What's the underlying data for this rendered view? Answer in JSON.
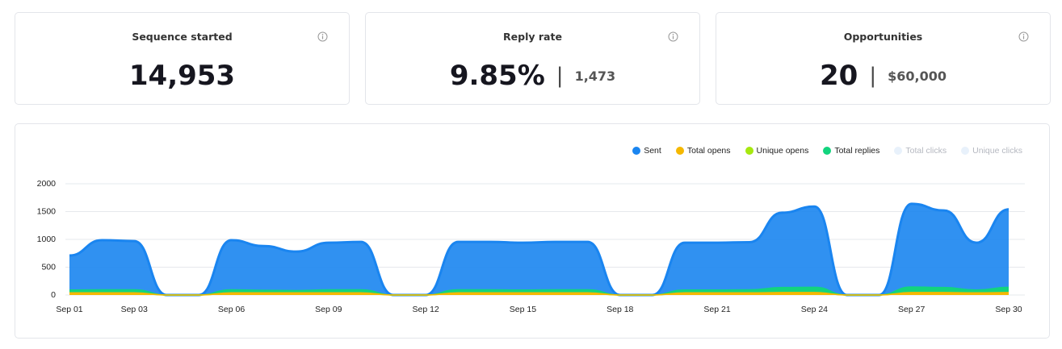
{
  "cards": [
    {
      "title": "Sequence started",
      "value": "14,953"
    },
    {
      "title": "Reply rate",
      "value": "9.85%",
      "secondary": "1,473"
    },
    {
      "title": "Opportunities",
      "value": "20",
      "secondary": "$60,000"
    }
  ],
  "chart_data": {
    "type": "area",
    "legend": "top-right",
    "grid": true,
    "categories": [
      "Sep 01",
      null,
      "Sep 03",
      null,
      null,
      "Sep 06",
      null,
      null,
      "Sep 09",
      null,
      null,
      "Sep 12",
      null,
      null,
      "Sep 15",
      null,
      null,
      "Sep 18",
      null,
      null,
      "Sep 21",
      null,
      null,
      "Sep 24",
      null,
      null,
      "Sep 27",
      null,
      null,
      "Sep 30"
    ],
    "ylim": [
      0,
      2000
    ],
    "yticks": [
      0,
      500,
      1000,
      1500,
      2000
    ],
    "series": [
      {
        "name": "Sent",
        "color": "#1a85f0",
        "values": [
          710,
          985,
          970,
          0,
          0,
          985,
          880,
          780,
          940,
          955,
          0,
          0,
          955,
          955,
          940,
          955,
          955,
          0,
          0,
          940,
          940,
          950,
          1480,
          1590,
          0,
          0,
          1640,
          1520,
          940,
          1540
        ]
      },
      {
        "name": "Total opens",
        "color": "#f5b800",
        "values": [
          40,
          40,
          40,
          0,
          0,
          40,
          40,
          40,
          40,
          40,
          0,
          0,
          40,
          40,
          40,
          40,
          40,
          0,
          0,
          40,
          40,
          40,
          45,
          45,
          0,
          0,
          45,
          45,
          40,
          45
        ]
      },
      {
        "name": "Unique opens",
        "color": "#a6e80f",
        "values": [
          30,
          30,
          30,
          0,
          0,
          30,
          30,
          30,
          30,
          30,
          0,
          0,
          30,
          30,
          30,
          30,
          30,
          0,
          0,
          30,
          30,
          30,
          35,
          35,
          0,
          0,
          35,
          35,
          30,
          35
        ]
      },
      {
        "name": "Total replies",
        "color": "#12d47e",
        "values": [
          90,
          95,
          95,
          0,
          0,
          95,
          85,
          80,
          95,
          95,
          0,
          0,
          95,
          95,
          90,
          95,
          95,
          0,
          0,
          90,
          90,
          95,
          135,
          140,
          0,
          0,
          145,
          135,
          90,
          140
        ]
      },
      {
        "name": "Total clicks",
        "color": "#e8f1fb",
        "hidden": true
      },
      {
        "name": "Unique clicks",
        "color": "#e8f1fb",
        "hidden": true
      }
    ]
  }
}
